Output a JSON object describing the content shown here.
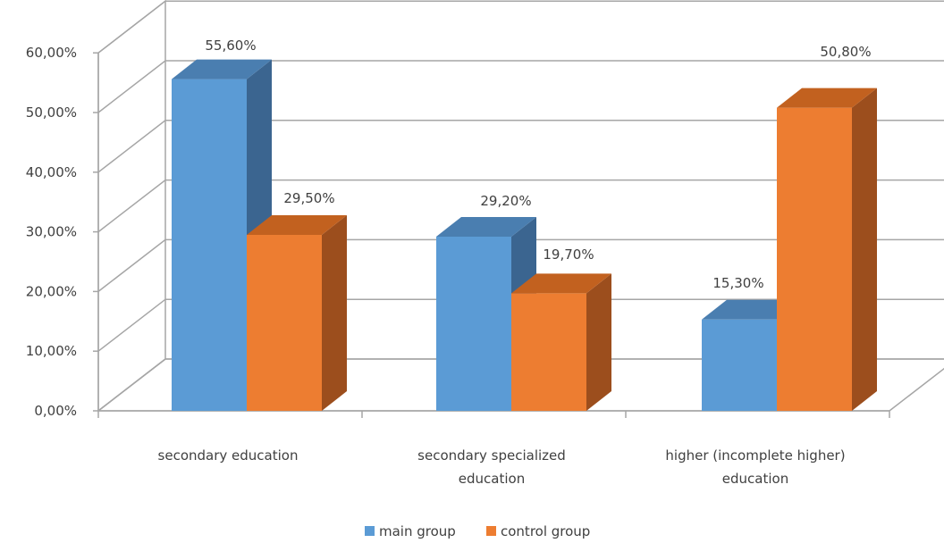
{
  "chart_data": {
    "type": "bar",
    "subtype": "3d-clustered-column",
    "categories": [
      [
        "secondary education"
      ],
      [
        "secondary specialized",
        "education"
      ],
      [
        "higher (incomplete higher)",
        "education"
      ]
    ],
    "series": [
      {
        "name": "main group",
        "values": [
          55.6,
          29.2,
          15.3
        ],
        "labels": [
          "55,60%",
          "29,20%",
          "15,30%"
        ]
      },
      {
        "name": "control group",
        "values": [
          29.5,
          19.7,
          50.8
        ],
        "labels": [
          "29,50%",
          "19,70%",
          "50,80%"
        ]
      }
    ],
    "yticks": [
      "0,00%",
      "10,00%",
      "20,00%",
      "30,00%",
      "40,00%",
      "50,00%",
      "60,00%"
    ],
    "ylim": [
      0,
      60
    ],
    "grid": true,
    "legend": "bottom",
    "colors": {
      "main_front": "#5b9bd5",
      "main_side": "#3b6590",
      "main_top": "#4a7eb0",
      "control_front": "#ed7d31",
      "control_side": "#9c4e1d",
      "control_top": "#c2611f",
      "grid": "#a6a6a6",
      "text": "#404040"
    }
  }
}
